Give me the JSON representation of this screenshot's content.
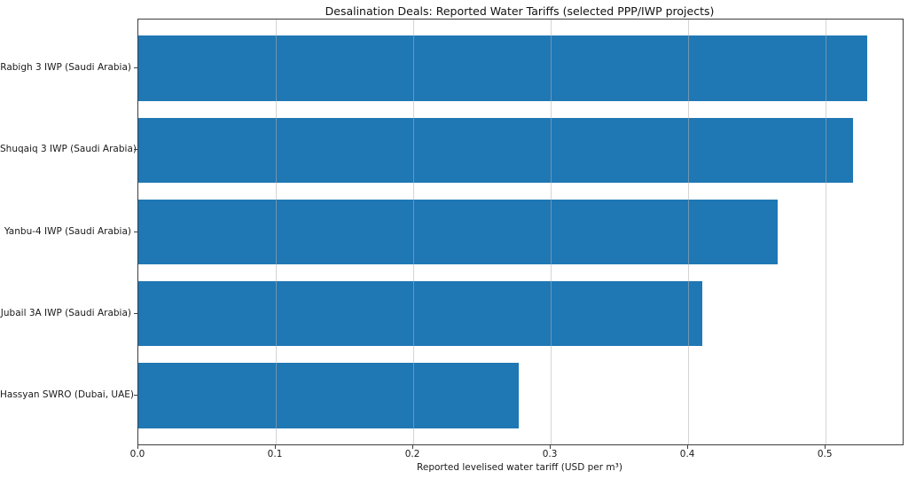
{
  "title": "Desalination Deals: Reported Water Tariffs (selected PPP/IWP projects)",
  "chart_data": {
    "type": "bar",
    "orientation": "horizontal",
    "title": "Desalination Deals: Reported Water Tariffs (selected PPP/IWP projects)",
    "categories": [
      "Rabigh 3 IWP (Saudi Arabia)",
      "Shuqaiq 3 IWP (Saudi Arabia)",
      "Yanbu-4 IWP (Saudi Arabia)",
      "Jubail 3A IWP (Saudi Arabia)",
      "Hassyan SWRO (Dubai, UAE)"
    ],
    "values": [
      0.53,
      0.52,
      0.465,
      0.41,
      0.277
    ],
    "xlabel": "Reported levelised water tariff (USD per m³)",
    "ylabel": "",
    "xlim": [
      0,
      0.556
    ],
    "xticks": [
      0.0,
      0.1,
      0.2,
      0.3,
      0.4,
      0.5
    ],
    "grid": true,
    "grid_axis": "x",
    "grid_over_bars": true,
    "legend": false,
    "bar_color": "#1f77b4",
    "grid_color": "#b0b0b0",
    "bar_height_fraction": 0.8
  }
}
